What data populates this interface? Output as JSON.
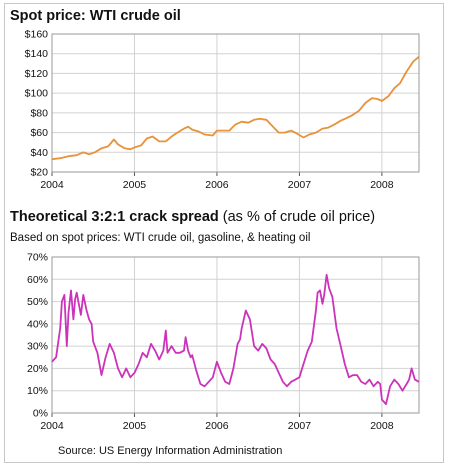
{
  "chart_data": [
    {
      "type": "line",
      "title": "Spot price: WTI crude oil",
      "ytick_labels": [
        "$20",
        "$40",
        "$60",
        "$80",
        "$100",
        "$120",
        "$140",
        "$160"
      ],
      "yticks": [
        20,
        40,
        60,
        80,
        100,
        120,
        140,
        160
      ],
      "ylim": [
        20,
        160
      ],
      "xtick_labels": [
        "2004",
        "2005",
        "2006",
        "2007",
        "2008"
      ],
      "xticks": [
        2004,
        2005,
        2006,
        2007,
        2008
      ],
      "xlim": [
        2004,
        2008.45
      ],
      "grid": true,
      "color": "#e8923a",
      "series": [
        {
          "x": [
            2004.0,
            2004.1,
            2004.2,
            2004.3,
            2004.38,
            2004.45,
            2004.52,
            2004.6,
            2004.68,
            2004.75,
            2004.8,
            2004.88,
            2004.95,
            2005.0,
            2005.08,
            2005.15,
            2005.22,
            2005.3,
            2005.38,
            2005.45,
            2005.52,
            2005.6,
            2005.65,
            2005.7,
            2005.78,
            2005.85,
            2005.95,
            2006.0,
            2006.08,
            2006.15,
            2006.22,
            2006.3,
            2006.38,
            2006.45,
            2006.52,
            2006.6,
            2006.68,
            2006.75,
            2006.82,
            2006.9,
            2006.97,
            2007.05,
            2007.12,
            2007.2,
            2007.28,
            2007.35,
            2007.42,
            2007.5,
            2007.58,
            2007.65,
            2007.72,
            2007.8,
            2007.88,
            2007.95,
            2008.0,
            2008.08,
            2008.15,
            2008.22,
            2008.3,
            2008.38,
            2008.45
          ],
          "values": [
            33,
            34,
            36,
            37,
            40,
            38,
            40,
            44,
            46,
            53,
            48,
            44,
            43,
            45,
            47,
            54,
            56,
            51,
            51,
            56,
            60,
            64,
            66,
            63,
            61,
            58,
            57,
            62,
            62,
            62,
            68,
            71,
            70,
            73,
            74,
            73,
            66,
            60,
            60,
            62,
            59,
            55,
            58,
            60,
            64,
            65,
            68,
            72,
            75,
            78,
            82,
            90,
            95,
            94,
            92,
            97,
            105,
            110,
            122,
            132,
            137
          ]
        }
      ]
    },
    {
      "type": "line",
      "title": "Theoretical 3:2:1 crack spread",
      "title_suffix": "(as % of crude oil price)",
      "subtitle": "Based on spot prices: WTI crude oil, gasoline, & heating oil",
      "ytick_labels": [
        "0%",
        "10%",
        "20%",
        "30%",
        "40%",
        "50%",
        "60%",
        "70%"
      ],
      "yticks": [
        0,
        10,
        20,
        30,
        40,
        50,
        60,
        70
      ],
      "ylim": [
        0,
        70
      ],
      "xtick_labels": [
        "2004",
        "2005",
        "2006",
        "2007",
        "2008"
      ],
      "xticks": [
        2004,
        2005,
        2006,
        2007,
        2008
      ],
      "xlim": [
        2004,
        2008.45
      ],
      "grid": true,
      "color": "#cc33bb",
      "series": [
        {
          "x": [
            2004.0,
            2004.05,
            2004.1,
            2004.12,
            2004.15,
            2004.18,
            2004.2,
            2004.23,
            2004.26,
            2004.28,
            2004.3,
            2004.33,
            2004.35,
            2004.38,
            2004.42,
            2004.45,
            2004.48,
            2004.5,
            2004.55,
            2004.6,
            2004.65,
            2004.7,
            2004.75,
            2004.8,
            2004.85,
            2004.9,
            2004.95,
            2005.0,
            2005.05,
            2005.1,
            2005.15,
            2005.2,
            2005.25,
            2005.3,
            2005.35,
            2005.38,
            2005.4,
            2005.45,
            2005.5,
            2005.55,
            2005.6,
            2005.62,
            2005.65,
            2005.68,
            2005.7,
            2005.75,
            2005.8,
            2005.85,
            2005.9,
            2005.95,
            2006.0,
            2006.05,
            2006.1,
            2006.15,
            2006.2,
            2006.25,
            2006.28,
            2006.3,
            2006.35,
            2006.4,
            2006.45,
            2006.5,
            2006.55,
            2006.6,
            2006.65,
            2006.7,
            2006.75,
            2006.8,
            2006.85,
            2006.9,
            2006.95,
            2007.0,
            2007.05,
            2007.1,
            2007.15,
            2007.2,
            2007.22,
            2007.25,
            2007.28,
            2007.3,
            2007.33,
            2007.36,
            2007.4,
            2007.45,
            2007.5,
            2007.55,
            2007.6,
            2007.65,
            2007.7,
            2007.75,
            2007.8,
            2007.85,
            2007.9,
            2007.95,
            2007.98,
            2008.0,
            2008.05,
            2008.1,
            2008.15,
            2008.2,
            2008.25,
            2008.3,
            2008.33,
            2008.36,
            2008.4,
            2008.45
          ],
          "values": [
            23,
            25,
            38,
            50,
            53,
            30,
            45,
            55,
            42,
            51,
            54,
            48,
            44,
            53,
            46,
            42,
            40,
            32,
            27,
            17,
            25,
            31,
            27,
            20,
            16,
            20,
            16,
            18,
            22,
            27,
            25,
            31,
            28,
            24,
            28,
            37,
            27,
            30,
            27,
            27,
            28,
            34,
            28,
            25,
            26,
            19,
            13,
            12,
            14,
            16,
            23,
            18,
            14,
            13,
            20,
            31,
            33,
            38,
            46,
            42,
            30,
            28,
            31,
            29,
            24,
            22,
            18,
            14,
            12,
            14,
            15,
            16,
            22,
            28,
            32,
            46,
            54,
            55,
            49,
            53,
            62,
            56,
            52,
            38,
            30,
            22,
            16,
            17,
            17,
            14,
            13,
            15,
            12,
            14,
            13,
            6,
            4,
            12,
            15,
            13,
            10,
            13,
            15,
            20,
            15,
            14
          ]
        }
      ]
    }
  ],
  "footer": {
    "source": "Source: US Energy Information Administration"
  }
}
